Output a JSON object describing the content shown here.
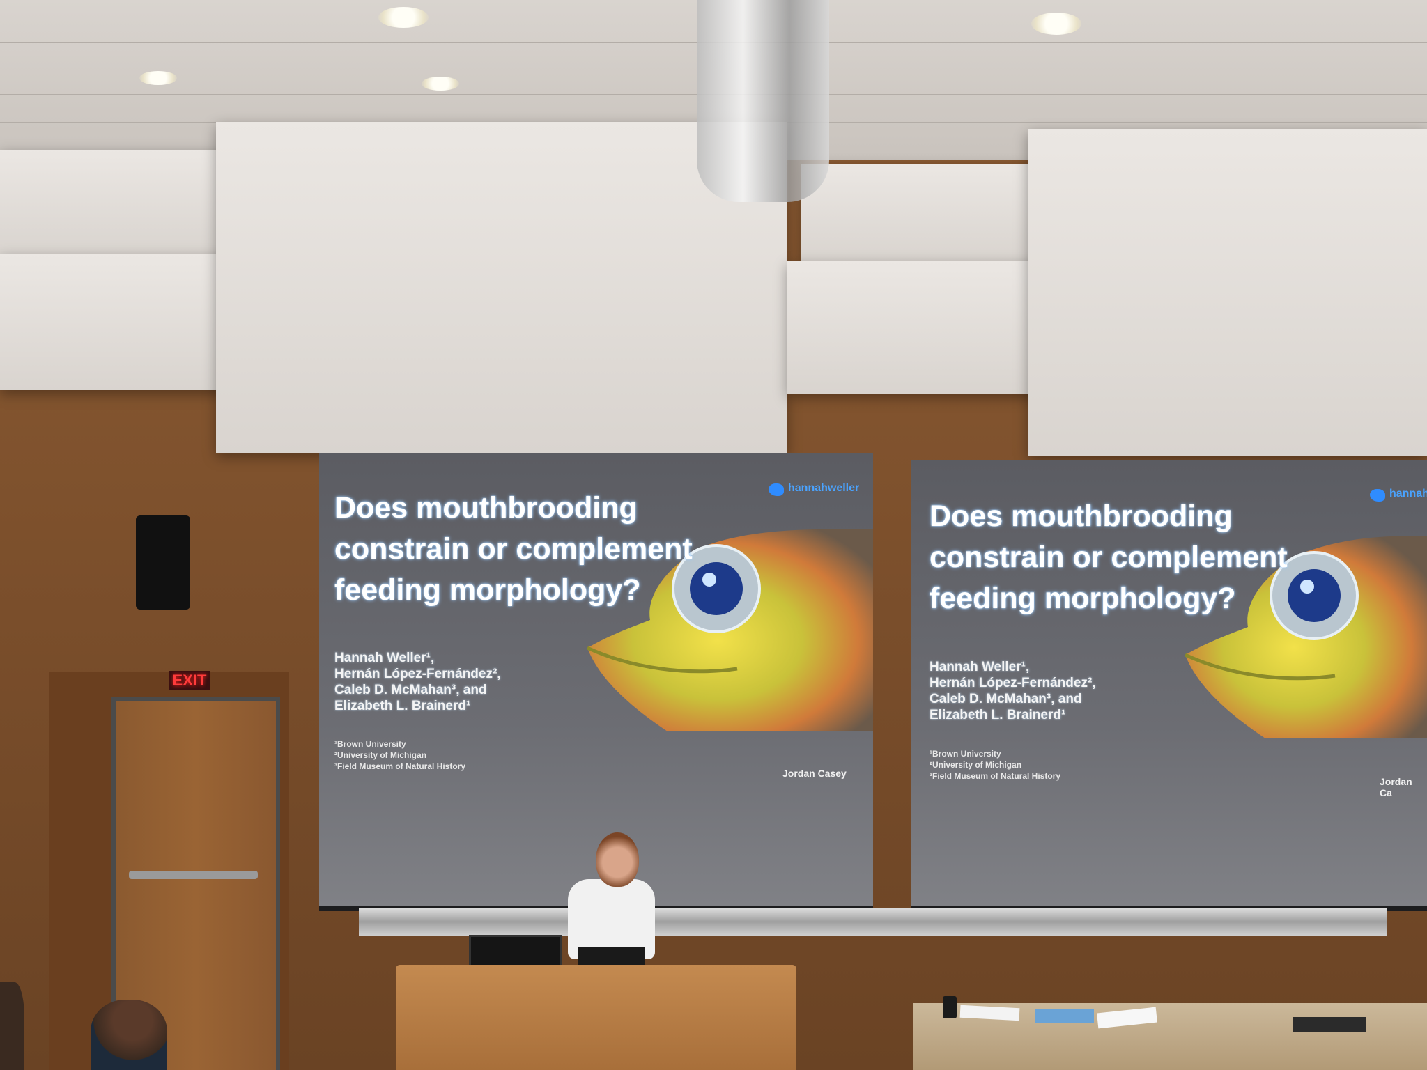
{
  "slides": [
    {
      "title": "Does mouthbrooding\nconstrain or complement\nfeeding morphology?",
      "authors": "Hannah Weller¹,\nHernán López-Fernández²,\nCaleb D. McMahan³, and\nElizabeth L. Brainerd¹",
      "affiliations": "¹Brown University\n²University of Michigan\n³Field Museum of Natural History",
      "twitter": "hannahweller",
      "photo_credit": "Jordan Casey"
    },
    {
      "title": "Does mouthbrooding\nconstrain or complement\nfeeding morphology?",
      "authors": "Hannah Weller¹,\nHernán López-Fernández²,\nCaleb D. McMahan³, and\nElizabeth L. Brainerd¹",
      "affiliations": "¹Brown University\n²University of Michigan\n³Field Museum of Natural History",
      "twitter": "hannahwe",
      "photo_credit": "Jordan Ca"
    }
  ],
  "exit_sign": "EXIT",
  "colors": {
    "slide_title": "#ffffff",
    "twitter_blue": "#2f8cff",
    "wall_wood": "#7a4e2b",
    "exit_red": "#ff3b3b"
  }
}
